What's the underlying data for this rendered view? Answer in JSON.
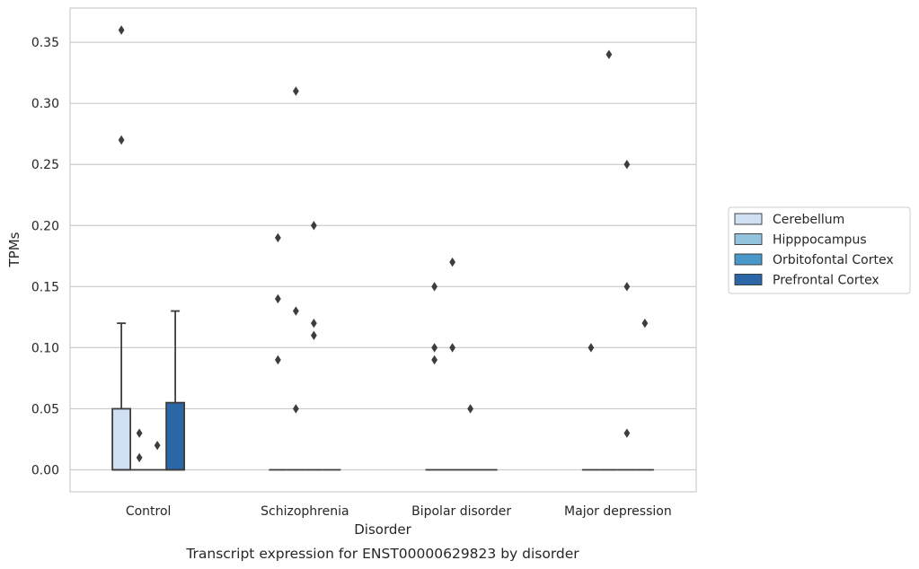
{
  "chart_data": {
    "type": "box",
    "title": "Transcript expression for ENST00000629823 by disorder",
    "xlabel": "Disorder",
    "ylabel": "TPMs",
    "categories": [
      "Control",
      "Schizophrenia",
      "Bipolar disorder",
      "Major depression"
    ],
    "ylim": [
      -0.018,
      0.378
    ],
    "yticks": [
      {
        "value": 0.0,
        "label": "0.00"
      },
      {
        "value": 0.05,
        "label": "0.05"
      },
      {
        "value": 0.1,
        "label": "0.10"
      },
      {
        "value": 0.15,
        "label": "0.15"
      },
      {
        "value": 0.2,
        "label": "0.20"
      },
      {
        "value": 0.25,
        "label": "0.25"
      },
      {
        "value": 0.3,
        "label": "0.30"
      },
      {
        "value": 0.35,
        "label": "0.35"
      }
    ],
    "grid": "horizontal",
    "legend_position": "right",
    "series": [
      {
        "name": "Cerebellum",
        "color": "#cfe1f2",
        "boxes": [
          {
            "q1": 0.0,
            "median": 0.0,
            "q3": 0.05,
            "whisker_low": 0.0,
            "whisker_high": 0.12,
            "outliers": [
              0.27,
              0.36
            ]
          },
          {
            "q1": 0.0,
            "median": 0.0,
            "q3": 0.0,
            "whisker_low": 0.0,
            "whisker_high": 0.0,
            "outliers": [
              0.09,
              0.14,
              0.19
            ]
          },
          {
            "q1": 0.0,
            "median": 0.0,
            "q3": 0.0,
            "whisker_low": 0.0,
            "whisker_high": 0.0,
            "outliers": [
              0.09,
              0.1,
              0.15
            ]
          },
          {
            "q1": 0.0,
            "median": 0.0,
            "q3": 0.0,
            "whisker_low": 0.0,
            "whisker_high": 0.0,
            "outliers": [
              0.1
            ]
          }
        ]
      },
      {
        "name": "Hipppocampus",
        "color": "#93c4de",
        "boxes": [
          {
            "q1": 0.0,
            "median": 0.0,
            "q3": 0.0,
            "whisker_low": 0.0,
            "whisker_high": 0.0,
            "outliers": [
              0.01,
              0.03
            ]
          },
          {
            "q1": 0.0,
            "median": 0.0,
            "q3": 0.0,
            "whisker_low": 0.0,
            "whisker_high": 0.0,
            "outliers": [
              0.05,
              0.13,
              0.31
            ]
          },
          {
            "q1": 0.0,
            "median": 0.0,
            "q3": 0.0,
            "whisker_low": 0.0,
            "whisker_high": 0.0,
            "outliers": [
              0.1,
              0.17
            ]
          },
          {
            "q1": 0.0,
            "median": 0.0,
            "q3": 0.0,
            "whisker_low": 0.0,
            "whisker_high": 0.0,
            "outliers": [
              0.34
            ]
          }
        ]
      },
      {
        "name": "Orbitofontal Cortex",
        "color": "#4a98c9",
        "boxes": [
          {
            "q1": 0.0,
            "median": 0.0,
            "q3": 0.0,
            "whisker_low": 0.0,
            "whisker_high": 0.0,
            "outliers": [
              0.02
            ]
          },
          {
            "q1": 0.0,
            "median": 0.0,
            "q3": 0.0,
            "whisker_low": 0.0,
            "whisker_high": 0.0,
            "outliers": [
              0.11,
              0.12,
              0.2
            ]
          },
          {
            "q1": 0.0,
            "median": 0.0,
            "q3": 0.0,
            "whisker_low": 0.0,
            "whisker_high": 0.0,
            "outliers": [
              0.05
            ]
          },
          {
            "q1": 0.0,
            "median": 0.0,
            "q3": 0.0,
            "whisker_low": 0.0,
            "whisker_high": 0.0,
            "outliers": [
              0.03,
              0.15,
              0.25
            ]
          }
        ]
      },
      {
        "name": "Prefrontal Cortex",
        "color": "#2b67a6",
        "boxes": [
          {
            "q1": 0.0,
            "median": 0.0,
            "q3": 0.055,
            "whisker_low": 0.0,
            "whisker_high": 0.13,
            "outliers": []
          },
          {
            "q1": 0.0,
            "median": 0.0,
            "q3": 0.0,
            "whisker_low": 0.0,
            "whisker_high": 0.0,
            "outliers": []
          },
          {
            "q1": 0.0,
            "median": 0.0,
            "q3": 0.0,
            "whisker_low": 0.0,
            "whisker_high": 0.0,
            "outliers": []
          },
          {
            "q1": 0.0,
            "median": 0.0,
            "q3": 0.0,
            "whisker_low": 0.0,
            "whisker_high": 0.0,
            "outliers": [
              0.12
            ]
          }
        ]
      }
    ]
  }
}
